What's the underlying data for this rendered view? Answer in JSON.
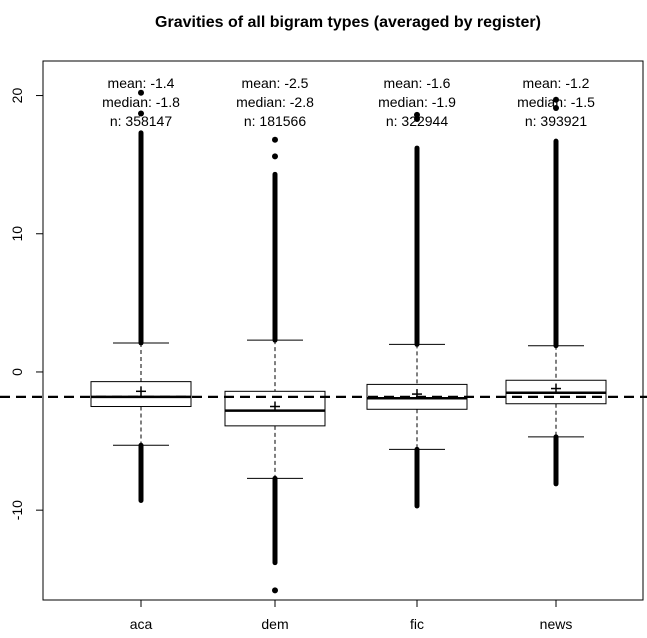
{
  "chart_data": {
    "type": "boxplot",
    "title": "Gravities of all bigram types (averaged by register)",
    "xlabel": "",
    "ylabel": "",
    "ylim": [
      -16.5,
      22.5
    ],
    "y_ticks": [
      20,
      10,
      0,
      -10
    ],
    "y_tick_labels": [
      "20",
      "10",
      "0",
      "-10"
    ],
    "reference_line": -1.8,
    "grid": false,
    "categories": [
      "aca",
      "dem",
      "fic",
      "news"
    ],
    "boxes": [
      {
        "category": "aca",
        "q1": -2.5,
        "median": -1.8,
        "q3": -0.7,
        "whisker_low": -5.3,
        "whisker_high": 2.1,
        "mean": -1.4,
        "outliers_high_range": [
          2.1,
          17.3
        ],
        "outliers_high_extra": [
          18.7,
          20.2
        ],
        "outliers_low_range": [
          -9.3,
          -5.3
        ],
        "mean_label": "mean: -1.4",
        "median_label": "median: -1.8",
        "n_label": "n: 358147"
      },
      {
        "category": "dem",
        "q1": -3.9,
        "median": -2.8,
        "q3": -1.4,
        "whisker_low": -7.7,
        "whisker_high": 2.3,
        "mean": -2.5,
        "outliers_high_range": [
          2.3,
          14.3
        ],
        "outliers_high_extra": [
          15.6,
          16.8
        ],
        "outliers_low_range": [
          -13.8,
          -7.7
        ],
        "outliers_low_extra": [
          -15.8
        ],
        "mean_label": "mean: -2.5",
        "median_label": "median: -2.8",
        "n_label": "n: 181566"
      },
      {
        "category": "fic",
        "q1": -2.7,
        "median": -1.9,
        "q3": -0.9,
        "whisker_low": -5.6,
        "whisker_high": 2.0,
        "mean": -1.6,
        "outliers_high_range": [
          2.0,
          16.2
        ],
        "outliers_high_extra": [
          18.3,
          18.6
        ],
        "outliers_low_range": [
          -9.7,
          -5.6
        ],
        "mean_label": "mean: -1.6",
        "median_label": "median: -1.9",
        "n_label": "n: 322944"
      },
      {
        "category": "news",
        "q1": -2.3,
        "median": -1.5,
        "q3": -0.6,
        "whisker_low": -4.7,
        "whisker_high": 1.9,
        "mean": -1.2,
        "outliers_high_range": [
          1.9,
          16.7
        ],
        "outliers_high_extra": [
          19.1,
          19.7
        ],
        "outliers_low_range": [
          -8.1,
          -4.7
        ],
        "mean_label": "mean: -1.2",
        "median_label": "median: -1.5",
        "n_label": "n: 393921"
      }
    ]
  }
}
